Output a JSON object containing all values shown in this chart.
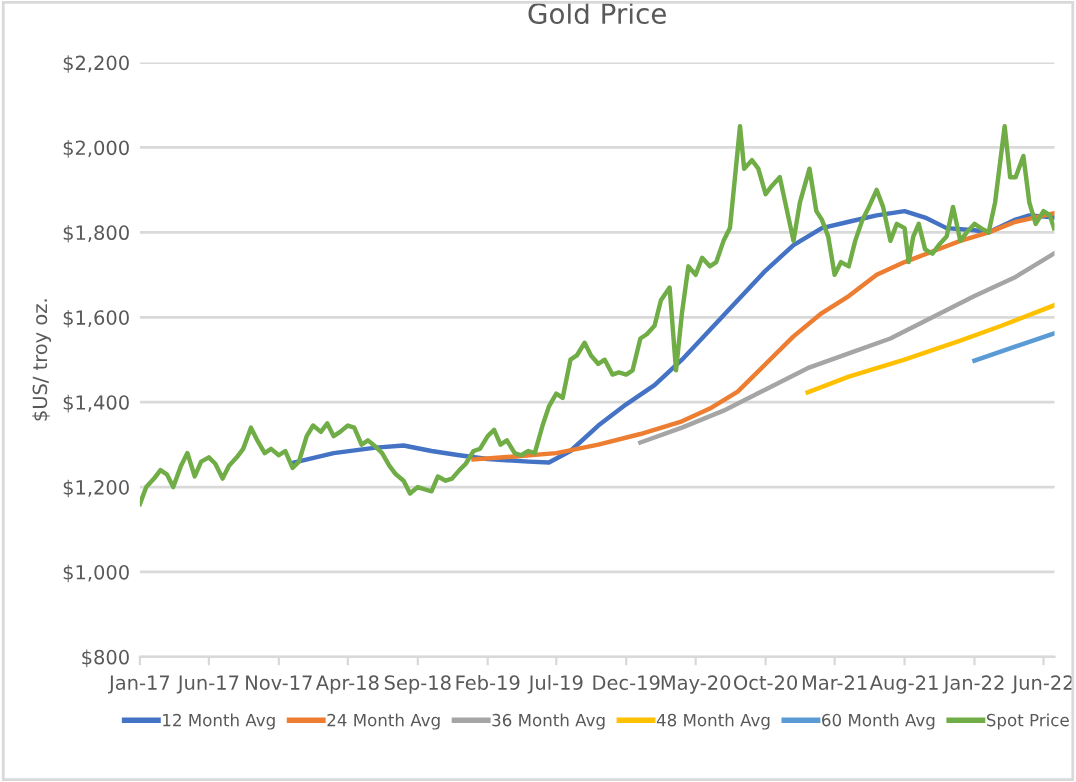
{
  "chart_data": {
    "type": "line",
    "title": "Gold Price",
    "ylabel": "$US/ troy oz.",
    "xlim": [
      "2017-01-01",
      "2022-06-25"
    ],
    "xticks": [
      {
        "value": "2017-01-01",
        "label": "Jan-17"
      },
      {
        "value": "2017-06-01",
        "label": "Jun-17"
      },
      {
        "value": "2017-11-01",
        "label": "Nov-17"
      },
      {
        "value": "2018-04-01",
        "label": "Apr-18"
      },
      {
        "value": "2018-09-01",
        "label": "Sep-18"
      },
      {
        "value": "2019-02-01",
        "label": "Feb-19"
      },
      {
        "value": "2019-07-01",
        "label": "Jul-19"
      },
      {
        "value": "2019-12-01",
        "label": "Dec-19"
      },
      {
        "value": "2020-05-01",
        "label": "May-20"
      },
      {
        "value": "2020-10-01",
        "label": "Oct-20"
      },
      {
        "value": "2021-03-01",
        "label": "Mar-21"
      },
      {
        "value": "2021-08-01",
        "label": "Aug-21"
      },
      {
        "value": "2022-01-01",
        "label": "Jan-22"
      },
      {
        "value": "2022-06-01",
        "label": "Jun-22"
      }
    ],
    "ylim": [
      800,
      2200
    ],
    "yticks": [
      {
        "value": 800,
        "label": "$800"
      },
      {
        "value": 1000,
        "label": "$1,000"
      },
      {
        "value": 1200,
        "label": "$1,200"
      },
      {
        "value": 1400,
        "label": "$1,400"
      },
      {
        "value": 1600,
        "label": "$1,600"
      },
      {
        "value": 1800,
        "label": "$1,800"
      },
      {
        "value": 2000,
        "label": "$2,000"
      },
      {
        "value": 2200,
        "label": "$2,200"
      }
    ],
    "grid": "y",
    "legend": "bottom",
    "marker": "none",
    "line_style": "solid",
    "series": [
      {
        "name": "12 Month Avg",
        "color": "#4472c4",
        "x": [
          "2017-12-01",
          "2018-03-01",
          "2018-06-01",
          "2018-08-01",
          "2018-10-01",
          "2018-12-01",
          "2019-02-01",
          "2019-05-01",
          "2019-06-15",
          "2019-08-01",
          "2019-10-01",
          "2019-12-01",
          "2020-02-01",
          "2020-04-01",
          "2020-06-01",
          "2020-08-01",
          "2020-10-01",
          "2020-12-01",
          "2021-02-01",
          "2021-04-01",
          "2021-06-01",
          "2021-08-01",
          "2021-09-15",
          "2021-11-01",
          "2022-01-01",
          "2022-02-01",
          "2022-04-01",
          "2022-05-01",
          "2022-06-24"
        ],
        "values": [
          1257,
          1280,
          1293,
          1298,
          1285,
          1275,
          1266,
          1260,
          1258,
          1285,
          1345,
          1395,
          1440,
          1500,
          1570,
          1640,
          1710,
          1770,
          1810,
          1825,
          1840,
          1850,
          1835,
          1810,
          1805,
          1800,
          1830,
          1840,
          1835
        ]
      },
      {
        "name": "24 Month Avg",
        "color": "#ed7d31",
        "x": [
          "2019-01-01",
          "2019-04-01",
          "2019-07-01",
          "2019-10-01",
          "2020-01-01",
          "2020-04-01",
          "2020-06-01",
          "2020-08-01",
          "2020-10-01",
          "2020-12-01",
          "2021-02-01",
          "2021-04-01",
          "2021-06-01",
          "2021-08-01",
          "2021-10-01",
          "2021-12-01",
          "2022-02-01",
          "2022-04-01",
          "2022-06-24"
        ],
        "values": [
          1265,
          1272,
          1280,
          1300,
          1325,
          1355,
          1385,
          1425,
          1490,
          1555,
          1610,
          1650,
          1700,
          1730,
          1755,
          1780,
          1800,
          1825,
          1845
        ]
      },
      {
        "name": "36 Month Avg",
        "color": "#a5a5a5",
        "x": [
          "2020-01-01",
          "2020-04-01",
          "2020-07-01",
          "2020-10-01",
          "2021-01-01",
          "2021-04-01",
          "2021-07-01",
          "2021-10-01",
          "2022-01-01",
          "2022-04-01",
          "2022-06-24"
        ],
        "values": [
          1305,
          1340,
          1380,
          1430,
          1480,
          1515,
          1550,
          1600,
          1650,
          1695,
          1750
        ]
      },
      {
        "name": "48 Month Avg",
        "color": "#ffc000",
        "x": [
          "2021-01-01",
          "2021-04-01",
          "2021-08-01",
          "2021-12-01",
          "2022-03-01",
          "2022-06-24"
        ],
        "values": [
          1423,
          1460,
          1500,
          1545,
          1580,
          1628
        ]
      },
      {
        "name": "60 Month Avg",
        "color": "#5b9bd5",
        "x": [
          "2022-01-01",
          "2022-06-24"
        ],
        "values": [
          1498,
          1562
        ]
      },
      {
        "name": "Spot Price",
        "color": "#70ad47",
        "x": [
          "2017-01-01",
          "2017-01-15",
          "2017-02-01",
          "2017-02-15",
          "2017-03-01",
          "2017-03-15",
          "2017-04-01",
          "2017-04-15",
          "2017-05-01",
          "2017-05-15",
          "2017-06-01",
          "2017-06-15",
          "2017-07-01",
          "2017-07-15",
          "2017-08-01",
          "2017-08-15",
          "2017-09-01",
          "2017-09-15",
          "2017-10-01",
          "2017-10-15",
          "2017-11-01",
          "2017-11-15",
          "2017-12-01",
          "2017-12-15",
          "2018-01-01",
          "2018-01-15",
          "2018-02-01",
          "2018-02-15",
          "2018-03-01",
          "2018-03-15",
          "2018-04-01",
          "2018-04-15",
          "2018-05-01",
          "2018-05-15",
          "2018-06-01",
          "2018-06-15",
          "2018-07-01",
          "2018-07-15",
          "2018-08-01",
          "2018-08-15",
          "2018-09-01",
          "2018-09-15",
          "2018-10-01",
          "2018-10-15",
          "2018-11-01",
          "2018-11-15",
          "2018-12-01",
          "2018-12-15",
          "2019-01-01",
          "2019-01-15",
          "2019-02-01",
          "2019-02-15",
          "2019-03-01",
          "2019-03-15",
          "2019-04-01",
          "2019-04-15",
          "2019-05-01",
          "2019-05-15",
          "2019-06-01",
          "2019-06-15",
          "2019-07-01",
          "2019-07-15",
          "2019-08-01",
          "2019-08-15",
          "2019-09-01",
          "2019-09-15",
          "2019-10-01",
          "2019-10-15",
          "2019-11-01",
          "2019-11-15",
          "2019-12-01",
          "2019-12-15",
          "2020-01-01",
          "2020-01-15",
          "2020-02-01",
          "2020-02-15",
          "2020-03-05",
          "2020-03-19",
          "2020-04-01",
          "2020-04-15",
          "2020-05-01",
          "2020-05-15",
          "2020-06-01",
          "2020-06-15",
          "2020-07-01",
          "2020-07-15",
          "2020-08-06",
          "2020-08-15",
          "2020-09-01",
          "2020-09-15",
          "2020-10-01",
          "2020-10-15",
          "2020-11-01",
          "2020-11-15",
          "2020-12-01",
          "2020-12-15",
          "2021-01-05",
          "2021-01-20",
          "2021-02-01",
          "2021-02-15",
          "2021-03-01",
          "2021-03-15",
          "2021-04-01",
          "2021-04-15",
          "2021-05-01",
          "2021-05-15",
          "2021-06-01",
          "2021-06-15",
          "2021-07-01",
          "2021-07-15",
          "2021-08-01",
          "2021-08-10",
          "2021-08-20",
          "2021-09-01",
          "2021-09-15",
          "2021-10-01",
          "2021-10-15",
          "2021-11-01",
          "2021-11-15",
          "2021-12-01",
          "2021-12-15",
          "2022-01-01",
          "2022-01-15",
          "2022-02-01",
          "2022-02-15",
          "2022-03-08",
          "2022-03-20",
          "2022-04-01",
          "2022-04-18",
          "2022-05-01",
          "2022-05-15",
          "2022-06-01",
          "2022-06-15",
          "2022-06-24"
        ],
        "values": [
          1160,
          1200,
          1220,
          1240,
          1230,
          1200,
          1250,
          1280,
          1225,
          1260,
          1270,
          1255,
          1220,
          1250,
          1270,
          1290,
          1340,
          1310,
          1280,
          1290,
          1275,
          1285,
          1245,
          1260,
          1320,
          1345,
          1330,
          1350,
          1320,
          1330,
          1345,
          1340,
          1300,
          1310,
          1295,
          1280,
          1250,
          1230,
          1215,
          1185,
          1200,
          1195,
          1190,
          1225,
          1215,
          1220,
          1240,
          1255,
          1285,
          1290,
          1320,
          1335,
          1300,
          1310,
          1280,
          1275,
          1285,
          1280,
          1345,
          1390,
          1420,
          1410,
          1500,
          1510,
          1540,
          1510,
          1490,
          1500,
          1465,
          1470,
          1465,
          1475,
          1550,
          1560,
          1580,
          1640,
          1670,
          1475,
          1610,
          1720,
          1700,
          1740,
          1720,
          1730,
          1780,
          1810,
          2050,
          1950,
          1970,
          1950,
          1890,
          1910,
          1930,
          1860,
          1780,
          1870,
          1950,
          1850,
          1830,
          1790,
          1700,
          1730,
          1720,
          1780,
          1830,
          1860,
          1900,
          1860,
          1780,
          1820,
          1810,
          1730,
          1790,
          1820,
          1760,
          1750,
          1770,
          1790,
          1860,
          1780,
          1800,
          1820,
          1810,
          1800,
          1870,
          2050,
          1930,
          1930,
          1980,
          1870,
          1820,
          1850,
          1840,
          1810
        ]
      }
    ]
  }
}
